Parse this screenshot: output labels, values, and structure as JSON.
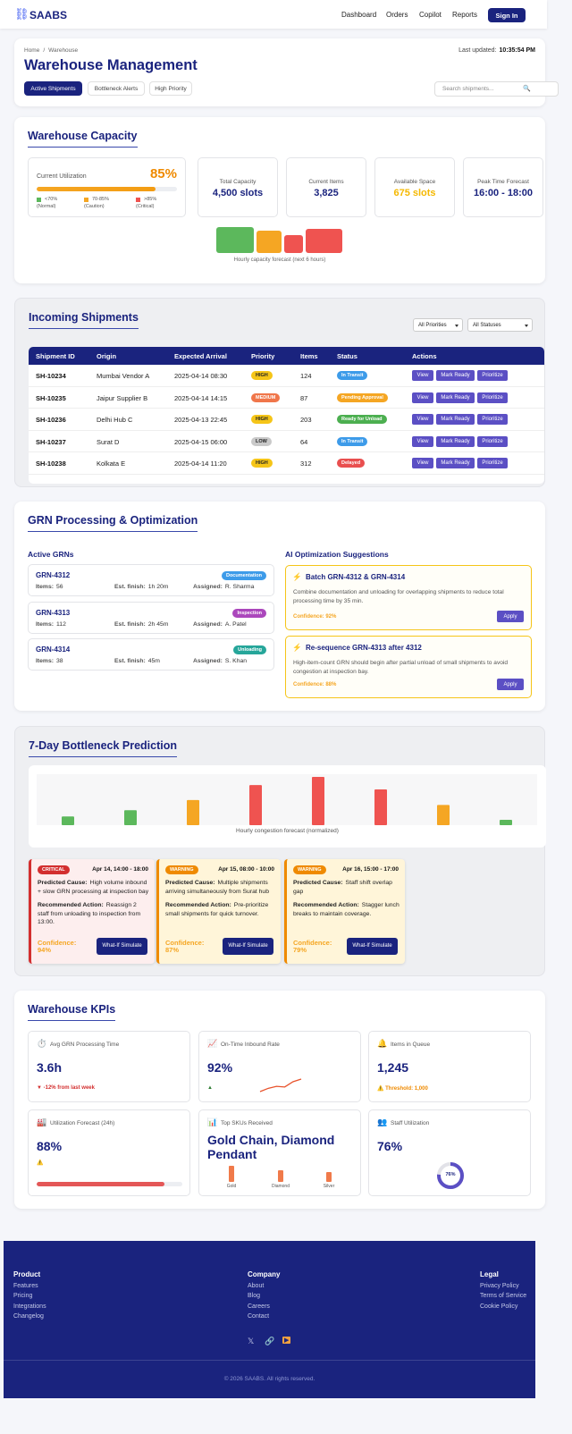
{
  "nav": {
    "brand_icon": "⛓",
    "brand": "SAABS",
    "links": [
      "Dashboard",
      "Orders",
      "Copilot",
      "Reports"
    ],
    "signin": "Sign In"
  },
  "header": {
    "breadcrumb": [
      "Home",
      "Warehouse"
    ],
    "breadcrumb_sep": "/",
    "updated_label": "Last updated:",
    "updated": "10:35:54 PM",
    "title": "Warehouse Management",
    "tabs": [
      "Active Shipments",
      "Bottleneck Alerts",
      "High Priority"
    ],
    "active_tab": 0,
    "search": "Search shipments...",
    "search_icon": "🔍"
  },
  "capacity": {
    "title": "Warehouse Capacity",
    "util_label": "Current Utilization",
    "utilization": 85,
    "utilization_label": "85%",
    "legend": [
      {
        "label": "<70%",
        "note": "(Normal)",
        "color": "#5cb85c"
      },
      {
        "label": "70-85%",
        "note": "(Caution)",
        "color": "#f5a623"
      },
      {
        "label": ">85%",
        "note": "(Critical)",
        "color": "#ef5350"
      }
    ],
    "stats": [
      {
        "label": "Total Capacity",
        "value": "4,500 slots",
        "color": "#1a237e"
      },
      {
        "label": "Current Items",
        "value": "3,825",
        "color": "#1a237e"
      },
      {
        "label": "Available Space",
        "value": "675 slots",
        "color": "#f5b800"
      },
      {
        "label": "Peak Time Forecast",
        "value": "16:00 - 18:00",
        "color": "#1a237e"
      }
    ],
    "forecast": {
      "values": [
        29,
        25,
        20,
        27
      ],
      "colors": [
        "#5cb85c",
        "#f5a623",
        "#ef5350",
        "#ef5350"
      ],
      "caption": "Hourly capacity forecast (next 6 hours)"
    }
  },
  "shipments": {
    "title": "Incoming Shipments",
    "filters": [
      "All Priorities",
      "All Statuses"
    ],
    "columns": [
      "Shipment ID",
      "Origin",
      "Expected Arrival",
      "Priority",
      "Items",
      "Status",
      "Actions"
    ],
    "rows": [
      [
        "SH-10234",
        "Mumbai Vendor A",
        "2025-04-14 08:30",
        "HIGH",
        "124",
        "In Transit"
      ],
      [
        "SH-10235",
        "Jaipur Supplier B",
        "2025-04-14 14:15",
        "MEDIUM",
        "87",
        "Pending Approval"
      ],
      [
        "SH-10236",
        "Delhi Hub C",
        "2025-04-13 22:45",
        "HIGH",
        "203",
        "Ready for Unload"
      ],
      [
        "SH-10237",
        "Surat D",
        "2025-04-15 06:00",
        "LOW",
        "64",
        "In Transit"
      ],
      [
        "SH-10238",
        "Kolkata E",
        "2025-04-14 11:20",
        "HIGH",
        "312",
        "Delayed"
      ]
    ],
    "actions": [
      "View",
      "Mark Ready",
      "Prioritize"
    ],
    "priority_colors": {
      "HIGH": "#f5c518",
      "MEDIUM": "#f0764a",
      "LOW": "#c9c9c9"
    },
    "status_colors": {
      "In Transit": "#3d9be9",
      "Pending Approval": "#f5a623",
      "Ready for Unload": "#4caf50",
      "Delayed": "#e94f4f"
    }
  },
  "grn": {
    "title": "GRN Processing & Optimization",
    "active_title": "Active GRNs",
    "items_label": "Items:",
    "est_label": "Est. finish:",
    "assigned_label": "Assigned:",
    "list": [
      {
        "id": "GRN-4312",
        "items": "56",
        "est": "1h 20m",
        "assigned": "R. Sharma",
        "tag": "Documentation",
        "tag_color": "#3d9be9"
      },
      {
        "id": "GRN-4313",
        "items": "112",
        "est": "2h 45m",
        "assigned": "A. Patel",
        "tag": "Inspection",
        "tag_color": "#ab47bc"
      },
      {
        "id": "GRN-4314",
        "items": "38",
        "est": "45m",
        "assigned": "S. Khan",
        "tag": "Unloading",
        "tag_color": "#26a69a"
      }
    ],
    "ai_title": "AI Optimization Suggestions",
    "ai_icon": "⚡",
    "apply": "Apply",
    "suggestions": [
      {
        "title": "Batch GRN-4312 & GRN-4314",
        "text": "Combine documentation and unloading for overlapping shipments to reduce total processing time by 35 min.",
        "confidence": "Confidence: 92%"
      },
      {
        "title": "Re-sequence GRN-4313 after 4312",
        "text": "High-item-count GRN should begin after partial unload of small shipments to avoid congestion at inspection bay.",
        "confidence": "Confidence: 88%"
      }
    ]
  },
  "bottleneck": {
    "title": "7-Day Bottleneck Prediction",
    "values": [
      18,
      31,
      52,
      83,
      100,
      74,
      42,
      11
    ],
    "colors": [
      "#5cb85c",
      "#5cb85c",
      "#f5a623",
      "#ef5350",
      "#ef5350",
      "#ef5350",
      "#f5a623",
      "#5cb85c"
    ],
    "caption": "Hourly congestion forecast (normalized)",
    "cause_label": "Predicted Cause:",
    "action_label": "Recommended Action:",
    "simulate": "What-If Simulate",
    "alerts": [
      {
        "severity": "CRITICAL",
        "color": "#d32f2f",
        "bg": "#fdeeee",
        "time": "Apr 14, 14:00 - 18:00",
        "cause": "High volume inbound + slow GRN processing at inspection bay",
        "action": "Reassign 2 staff from unloading to inspection from 13:00.",
        "confidence": "Confidence: 94%"
      },
      {
        "severity": "WARNING",
        "color": "#ef8a00",
        "bg": "#fff5d9",
        "time": "Apr 15, 08:00 - 10:00",
        "cause": "Multiple shipments arriving simultaneously from Surat hub",
        "action": "Pre-prioritize small shipments for quick turnover.",
        "confidence": "Confidence: 87%"
      },
      {
        "severity": "WARNING",
        "color": "#ef8a00",
        "bg": "#fff5d9",
        "time": "Apr 16, 15:00 - 17:00",
        "cause": "Staff shift overlap gap",
        "action": "Stagger lunch breaks to maintain coverage.",
        "confidence": "Confidence: 79%"
      }
    ]
  },
  "kpis": {
    "title": "Warehouse KPIs",
    "cards": [
      {
        "icon": "⏱️",
        "label": "Avg GRN Processing Time",
        "value": "3.6h",
        "note": "▼ -12% from last week",
        "note_color": "#d32f2f"
      },
      {
        "icon": "📈",
        "label": "On-Time Inbound Rate",
        "value": "92%",
        "note": "▲",
        "note_color": "#2e7d32",
        "trend": [
          0,
          0.5,
          0.8,
          0.7,
          1.5,
          1.9
        ]
      },
      {
        "icon": "🔔",
        "label": "Items in Queue",
        "value": "1,245",
        "note": "⚠️ Threshold: 1,000",
        "note_color": "#ef8a00"
      },
      {
        "icon": "🏭",
        "label": "Utilization Forecast (24h)",
        "value": "88%",
        "note": "⚠️",
        "note_color": "#ef8a00",
        "bar": 88
      },
      {
        "icon": "📊",
        "label": "Top SKUs Received",
        "value": "Gold Chain, Diamond Pendant",
        "skus": [
          {
            "name": "Gold",
            "value": 18
          },
          {
            "name": "Diamond",
            "value": 13
          },
          {
            "name": "Silver",
            "value": 11
          }
        ]
      },
      {
        "icon": "👥",
        "label": "Staff Utilization",
        "value": "76%",
        "donut": 76,
        "donut_label": "76%"
      }
    ]
  },
  "footer": {
    "columns": [
      {
        "title": "Product",
        "links": [
          "Features",
          "Pricing",
          "Integrations",
          "Changelog"
        ]
      },
      {
        "title": "Company",
        "links": [
          "About",
          "Blog",
          "Careers",
          "Contact"
        ]
      },
      {
        "title": "Legal",
        "links": [
          "Privacy Policy",
          "Terms of Service",
          "Cookie Policy"
        ]
      }
    ],
    "social": [
      "𝕏",
      "🔗",
      "▶"
    ],
    "copyright": "© 2026 SAABS. All rights reserved."
  }
}
